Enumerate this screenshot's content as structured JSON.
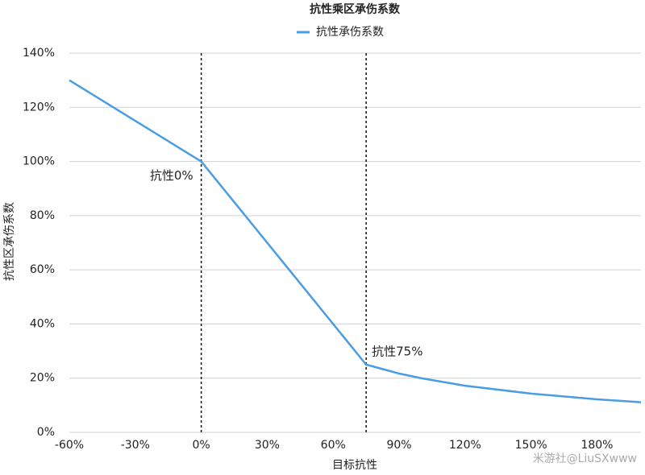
{
  "chart_data": {
    "type": "line",
    "title": "抗性乘区承伤系数",
    "x_label": "目标抗性",
    "y_label": "抗性区承伤系数",
    "x": [
      -60,
      0,
      75,
      90,
      100,
      120,
      150,
      180,
      200
    ],
    "series": [
      {
        "name": "抗性承伤系数",
        "color": "#4a9de3",
        "values": [
          130,
          100,
          25,
          21.7,
          20,
          17.2,
          14.3,
          12.2,
          11.1
        ]
      }
    ],
    "xlim": [
      -60,
      200
    ],
    "xticks": [
      {
        "value": -60,
        "label": "-60%"
      },
      {
        "value": -30,
        "label": "-30%"
      },
      {
        "value": 0,
        "label": "0%"
      },
      {
        "value": 30,
        "label": "30%"
      },
      {
        "value": 60,
        "label": "60%"
      },
      {
        "value": 90,
        "label": "90%"
      },
      {
        "value": 120,
        "label": "120%"
      },
      {
        "value": 150,
        "label": "150%"
      },
      {
        "value": 180,
        "label": "180%"
      }
    ],
    "ylim": [
      0,
      140
    ],
    "yticks": [
      {
        "value": 0,
        "label": "0%"
      },
      {
        "value": 20,
        "label": "20%"
      },
      {
        "value": 40,
        "label": "40%"
      },
      {
        "value": 60,
        "label": "60%"
      },
      {
        "value": 80,
        "label": "80%"
      },
      {
        "value": 100,
        "label": "100%"
      },
      {
        "value": 120,
        "label": "120%"
      },
      {
        "value": 140,
        "label": "140%"
      }
    ],
    "grid": true,
    "vlines": [
      {
        "x": 0,
        "label": "抗性0%"
      },
      {
        "x": 75,
        "label": "抗性75%"
      }
    ],
    "watermark": "米游社@LiuSXwww"
  }
}
